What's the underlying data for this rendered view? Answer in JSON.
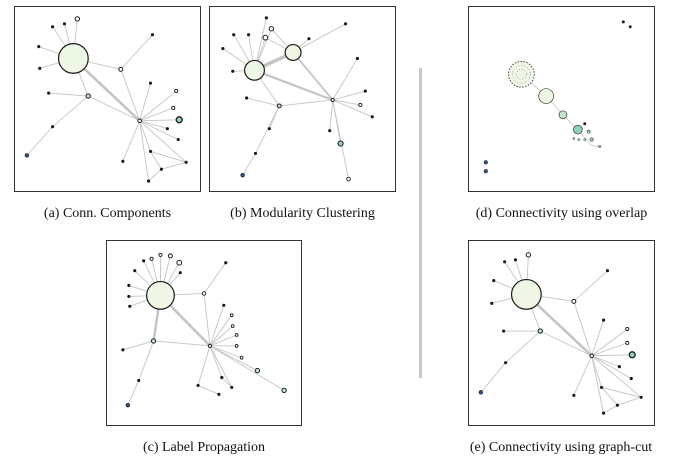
{
  "figure": {
    "panels": [
      {
        "id": "a",
        "caption": "(a) Conn. Components"
      },
      {
        "id": "b",
        "caption": "(b) Modularity Clustering"
      },
      {
        "id": "c",
        "caption": "(c) Label Propagation"
      },
      {
        "id": "d",
        "caption": "(d) Connectivity using overlap"
      },
      {
        "id": "e",
        "caption": "(e) Connectivity using graph-cut"
      }
    ]
  },
  "colors": {
    "edge": "#c4c4c4",
    "node_stroke": "#1a1a1a",
    "big_node_fill": "#eef7e6",
    "medium_node_fill": "#bfe3cf",
    "teal_node_fill": "#8fd0c0",
    "dark_node_fill": "#2c5aa0",
    "divider": "#c9c9c9"
  }
}
